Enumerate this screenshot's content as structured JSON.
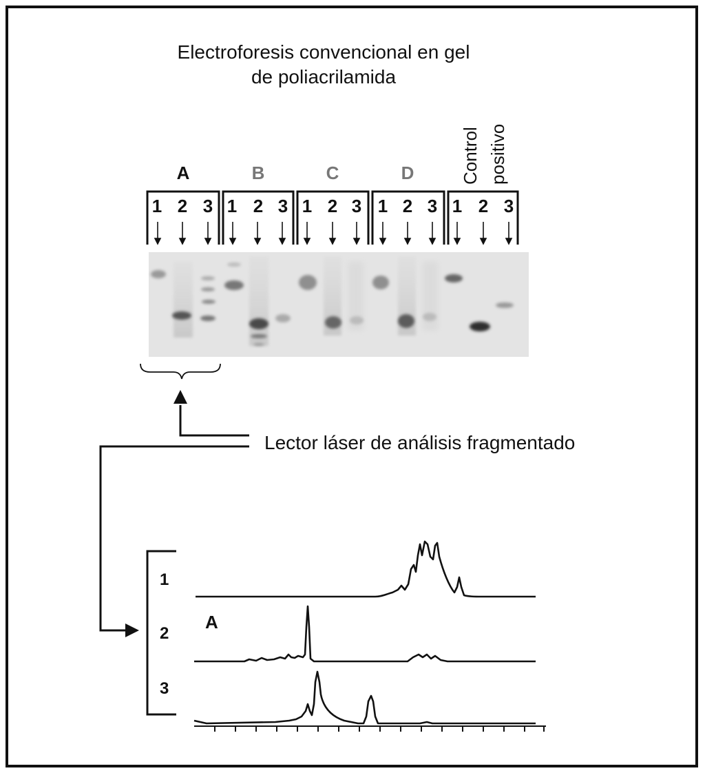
{
  "title": {
    "line1": "Electroforesis convencional en gel",
    "line2": "de poliacrilamida"
  },
  "gel": {
    "groups": [
      {
        "label": "A",
        "color": "#111111"
      },
      {
        "label": "B",
        "color": "#777777"
      },
      {
        "label": "C",
        "color": "#777777"
      },
      {
        "label": "D",
        "color": "#777777"
      }
    ],
    "control": {
      "line1": "Control",
      "line2": "positivo"
    },
    "lane_labels": [
      "1",
      "2",
      "3"
    ]
  },
  "reader_label": "Lector láser de análisis fragmentado",
  "traces": {
    "group_letter": "A",
    "labels": [
      "1",
      "2",
      "3"
    ]
  }
}
